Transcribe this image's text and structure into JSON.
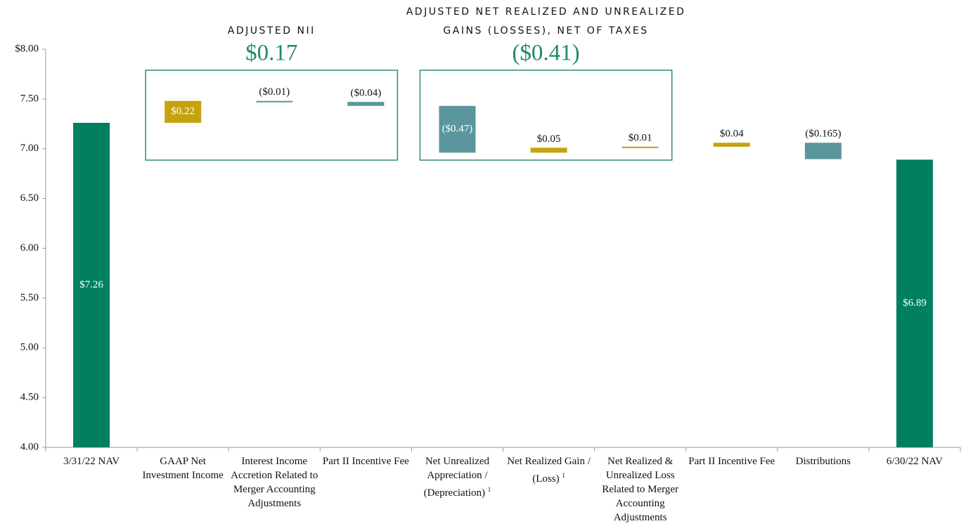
{
  "chart_data": {
    "type": "waterfall",
    "categories": [
      "3/31/22 NAV",
      "GAAP Net Investment Income",
      "Interest Income Accretion Related to Merger Accounting Adjustments",
      "Part II Incentive Fee",
      "Net Unrealized Appreciation / (Depreciation)",
      "Net Realized Gain / (Loss)",
      "Net Realized & Unrealized Loss Related to Merger Accounting Adjustments",
      "Part II Incentive Fee",
      "Distributions",
      "6/30/22 NAV"
    ],
    "category_notes": [
      null,
      null,
      null,
      null,
      "1",
      "1",
      null,
      null,
      null,
      null
    ],
    "values": [
      7.26,
      0.22,
      -0.01,
      -0.04,
      -0.47,
      0.05,
      0.01,
      0.04,
      -0.165,
      6.89
    ],
    "value_labels": [
      "$7.26",
      "$0.22",
      "($0.01)",
      "($0.04)",
      "($0.47)",
      "$0.05",
      "$0.01",
      "$0.04",
      "($0.165)",
      "$6.89"
    ],
    "measure": [
      "absolute",
      "relative",
      "relative",
      "relative",
      "relative",
      "relative",
      "relative",
      "relative",
      "relative",
      "absolute"
    ],
    "colors": {
      "absolute": "#00805f",
      "increase": "#c4a30f",
      "decrease": "#5a969c"
    },
    "ylim": [
      4,
      8
    ],
    "yticks": [
      {
        "value": 4,
        "label": "4.00"
      },
      {
        "value": 4.5,
        "label": "4.50"
      },
      {
        "value": 5,
        "label": "5.00"
      },
      {
        "value": 5.5,
        "label": "5.50"
      },
      {
        "value": 6,
        "label": "6.00"
      },
      {
        "value": 6.5,
        "label": "6.50"
      },
      {
        "value": 7,
        "label": "7.00"
      },
      {
        "value": 7.5,
        "label": "7.50"
      },
      {
        "value": 8,
        "label": "$8.00"
      }
    ],
    "groups": [
      {
        "title": "ADJUSTED NII",
        "value_label": "$0.17",
        "first": 1,
        "last": 3
      },
      {
        "title": "ADJUSTED NET REALIZED AND UNREALIZED GAINS (LOSSES), NET OF TAXES",
        "value_label": "($0.41)",
        "first": 4,
        "last": 6
      }
    ]
  }
}
